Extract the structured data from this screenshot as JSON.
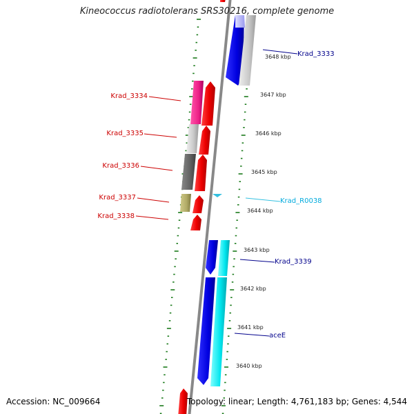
{
  "title": "Kineococcus radiotolerans SRS30216, complete genome",
  "footer": {
    "accession": "Accession: NC_009664",
    "summary": "Topology: linear; Length: 4,761,183 bp; Genes: 4,544"
  },
  "ruler": [
    {
      "label": "3648 kbp"
    },
    {
      "label": "3647 kbp"
    },
    {
      "label": "3646 kbp"
    },
    {
      "label": "3645 kbp"
    },
    {
      "label": "3644 kbp"
    },
    {
      "label": "3643 kbp"
    },
    {
      "label": "3642 kbp"
    },
    {
      "label": "3641 kbp"
    },
    {
      "label": "3640 kbp"
    }
  ],
  "genes": [
    {
      "name": "Krad_3333",
      "color": "#00008b"
    },
    {
      "name": "Krad_3334",
      "color": "#cc0000"
    },
    {
      "name": "Krad_3335",
      "color": "#cc0000"
    },
    {
      "name": "Krad_3336",
      "color": "#cc0000"
    },
    {
      "name": "Krad_3337",
      "color": "#cc0000"
    },
    {
      "name": "Krad_3338",
      "color": "#cc0000"
    },
    {
      "name": "Krad_R0038",
      "color": "#00aadd"
    },
    {
      "name": "Krad_3339",
      "color": "#00008b"
    },
    {
      "name": "aceE",
      "color": "#00008b"
    }
  ],
  "colors": {
    "backbone": "#888888",
    "tick": "#1a7a1a",
    "forward_cds": "#ee0000",
    "reverse_cds": "#0000ee",
    "pink_feature": "#ee2288",
    "light_gray_feature": "#cccccc",
    "dark_gray_feature": "#666666",
    "olive_feature": "#b0aa66",
    "cyan_feature": "#00e5ee",
    "trna": "#33c0e0"
  }
}
